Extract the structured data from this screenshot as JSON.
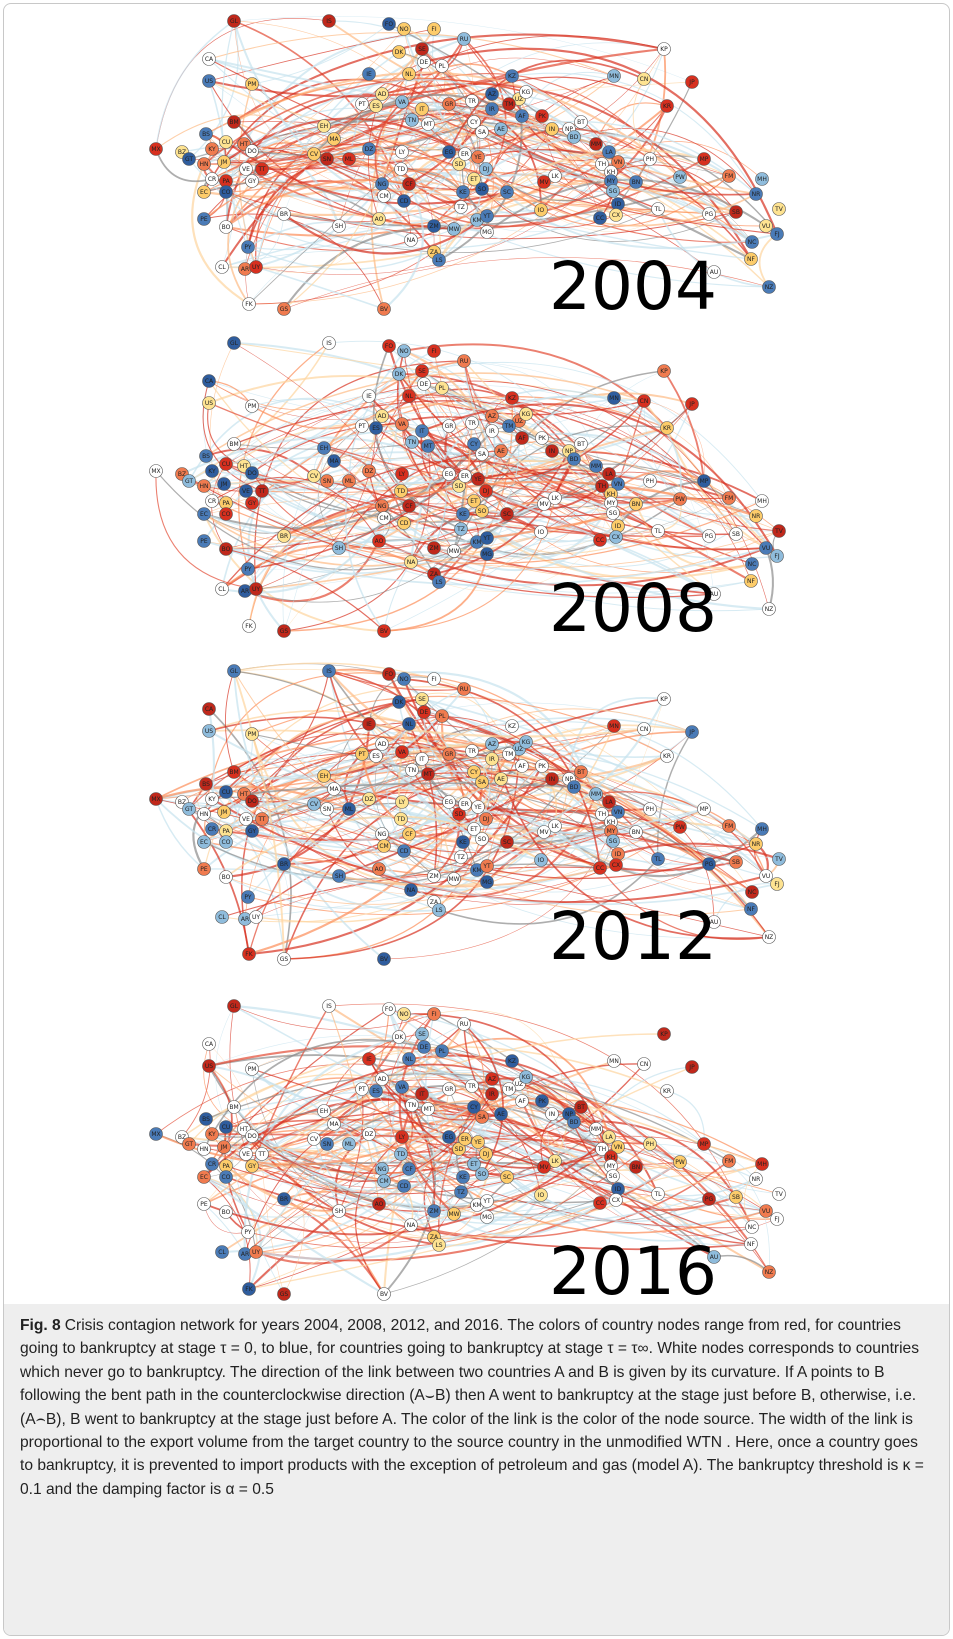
{
  "figure": {
    "panels": [
      {
        "year": "2004"
      },
      {
        "year": "2008"
      },
      {
        "year": "2012"
      },
      {
        "year": "2016"
      }
    ],
    "node_labels": [
      "GL",
      "IS",
      "FO",
      "RU",
      "KP",
      "CA",
      "JP",
      "US",
      "PM",
      "IE",
      "NL",
      "FI",
      "NO",
      "SE",
      "DK",
      "DE",
      "PL",
      "AD",
      "PT",
      "ES",
      "IT",
      "VA",
      "TN",
      "MT",
      "GR",
      "TR",
      "CY",
      "KZ",
      "UZ",
      "AF",
      "PK",
      "IN",
      "IR",
      "AZ",
      "TM",
      "KG",
      "MN",
      "CN",
      "KR",
      "NP",
      "BT",
      "BD",
      "MM",
      "LA",
      "TH",
      "VN",
      "KH",
      "PH",
      "MP",
      "MH",
      "PW",
      "FM",
      "NR",
      "TV",
      "SB",
      "VU",
      "NC",
      "FJ",
      "NF",
      "NZ",
      "AU",
      "PG",
      "ID",
      "CX",
      "TL",
      "CC",
      "BN",
      "MY",
      "SG",
      "LK",
      "MV",
      "IO",
      "SC",
      "BM",
      "BS",
      "KY",
      "CU",
      "HT",
      "DO",
      "JM",
      "BZ",
      "MX",
      "GT",
      "HN",
      "CR",
      "PA",
      "CO",
      "VE",
      "TT",
      "GY",
      "EC",
      "PE",
      "BO",
      "BR",
      "PY",
      "CL",
      "AR",
      "UY",
      "FK",
      "GS",
      "BV",
      "SH",
      "EH",
      "MA",
      "DZ",
      "LY",
      "EG",
      "SD",
      "ER",
      "YE",
      "ET",
      "DJ",
      "SO",
      "KE",
      "TZ",
      "CV",
      "SN",
      "ML",
      "TD",
      "NG",
      "CM",
      "CF",
      "AO",
      "CD",
      "ZM",
      "MW",
      "NA",
      "ZA",
      "LS",
      "MG",
      "KM",
      "YT",
      "SA",
      "AE"
    ],
    "caption": {
      "label": "Fig. 8",
      "text": "Crisis contagion network for years 2004, 2008, 2012, and 2016. The colors of country nodes range from red, for countries going to bankruptcy at stage τ = 0, to blue, for countries going to bankruptcy at stage τ = τ∞. White nodes corresponds to countries which never go to bankruptcy. The direction of the link between two countries A and B is given by its curvature. If A points to B following the bent path in the counterclockwise direction (A⌣B) then A went to bankruptcy at the stage just before B, otherwise, i.e. (A⌢B), B went to bankruptcy at the stage just before A. The color of the link is the color of the node source. The width of the link is proportional to the export volume from the target country to the source country in the unmodified WTN . Here, once a country goes to bankruptcy, it is prevented to import products with the exception of petroleum and gas (model A). The bankruptcy threshold is κ = 0.1 and the damping factor is α = 0.5"
    }
  }
}
